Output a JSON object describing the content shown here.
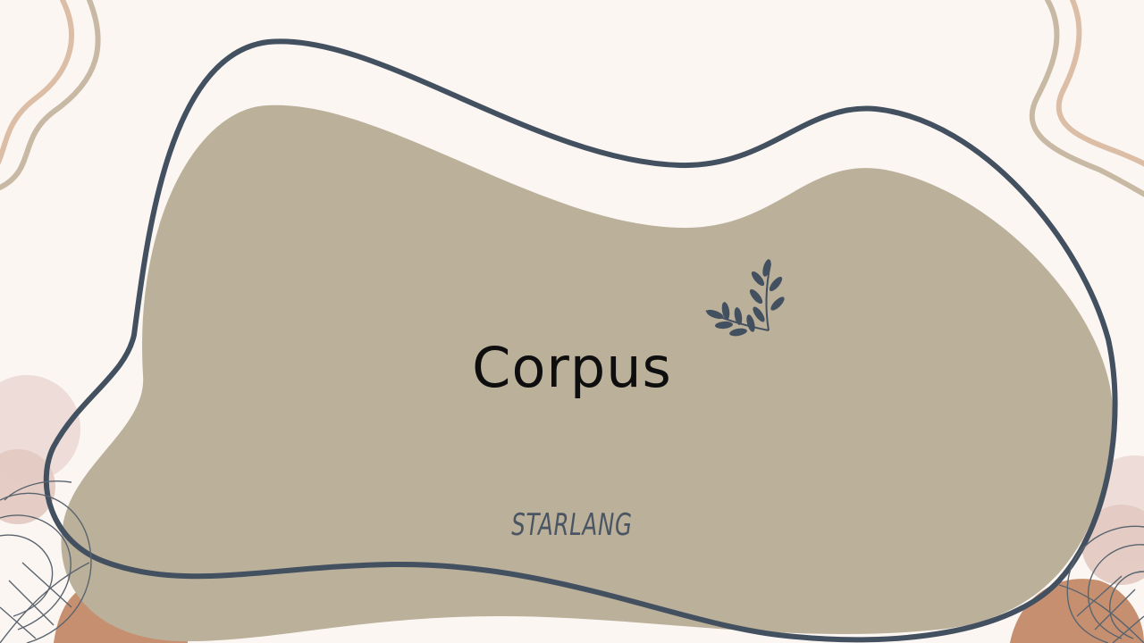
{
  "slide": {
    "title": "Corpus",
    "subtitle": "STARLANG"
  },
  "colors": {
    "background": "#fcf6f3",
    "blob": "#bbb09a",
    "outline": "#435060",
    "accent_tan": "#dcbea6",
    "accent_khaki": "#c8b9a4",
    "accent_rust": "#c69070",
    "accent_pink": "#ead7d1"
  },
  "icons": [
    "leaf-sprig-icon",
    "monstera-leaf-icon"
  ]
}
